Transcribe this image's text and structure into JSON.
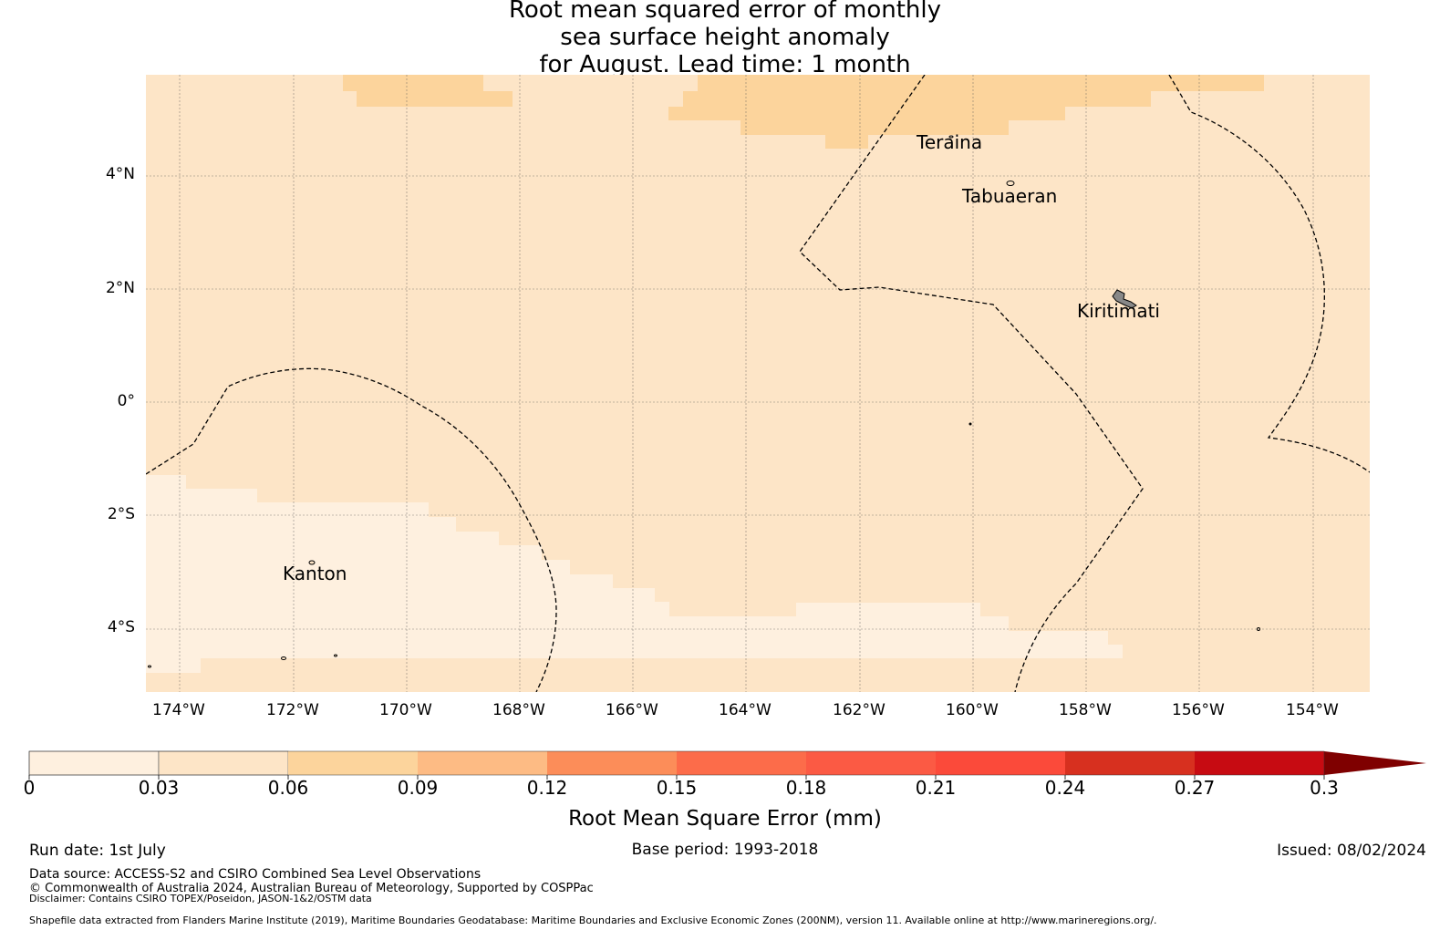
{
  "title": {
    "line1": "Root mean squared error of monthly",
    "line2": "sea surface height anomaly",
    "line3": "for August. Lead time: 1 month"
  },
  "map": {
    "lat_labels": [
      "4°N",
      "2°N",
      "0°",
      "2°S",
      "4°S"
    ],
    "lon_labels": [
      "174°W",
      "172°W",
      "170°W",
      "168°W",
      "166°W",
      "164°W",
      "162°W",
      "160°W",
      "158°W",
      "156°W",
      "154°W"
    ],
    "place_names": {
      "teraina": "Teraina",
      "tabuaeran": "Tabuaeran",
      "kiritimati": "Kiritimati",
      "kanton": "Kanton"
    },
    "shading_colors": {
      "band_0_003": "#fef0df",
      "band_003_006": "#fde5c7",
      "band_006_009": "#fcd49c"
    }
  },
  "colorbar": {
    "label": "Root Mean Square Error (mm)",
    "ticks": [
      "0",
      "0.03",
      "0.06",
      "0.09",
      "0.12",
      "0.15",
      "0.18",
      "0.21",
      "0.24",
      "0.27",
      "0.3"
    ],
    "colors": [
      "#fef0df",
      "#fde5c7",
      "#fcd49c",
      "#fdbb84",
      "#fc8d59",
      "#fc6c4a",
      "#fb5a44",
      "#fb4a3a",
      "#d7301f",
      "#c70b12",
      "#a50010",
      "#7f0000"
    ]
  },
  "footer": {
    "run_date": "Run date: 1st July",
    "base_period": "Base period: 1993-2018",
    "issued": "Issued: 08/02/2024",
    "data_source": "Data source: ACCESS-S2 and CSIRO Combined Sea Level Observations",
    "copyright": "© Commonwealth of Australia 2024, Australian Bureau of Meteorology, Supported by COSPPac",
    "disclaimer": "Disclaimer: Contains CSIRO TOPEX/Poseidon, JASON-1&2/OSTM data",
    "shapefile": "Shapefile data extracted from Flanders Marine Institute (2019), Maritime Boundaries Geodatabase: Maritime Boundaries and Exclusive Economic Zones (200NM), version 11. Available online at http://www.marineregions.org/."
  }
}
